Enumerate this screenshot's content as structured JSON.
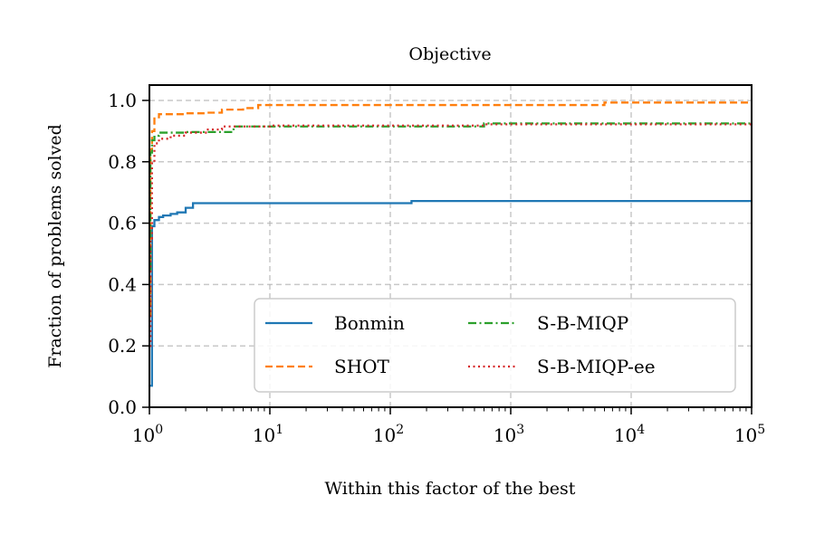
{
  "chart_data": {
    "type": "line",
    "title": "Objective",
    "xlabel": "Within this factor of the best",
    "ylabel": "Fraction of problems solved",
    "xscale": "log",
    "xlim": [
      1,
      100000
    ],
    "ylim": [
      0,
      1.05
    ],
    "xticks": [
      {
        "base": "10",
        "exp": "0",
        "value": 1
      },
      {
        "base": "10",
        "exp": "1",
        "value": 10
      },
      {
        "base": "10",
        "exp": "2",
        "value": 100
      },
      {
        "base": "10",
        "exp": "3",
        "value": 1000
      },
      {
        "base": "10",
        "exp": "4",
        "value": 10000
      },
      {
        "base": "10",
        "exp": "5",
        "value": 100000
      }
    ],
    "yticks": [
      "0.0",
      "0.2",
      "0.4",
      "0.6",
      "0.8",
      "1.0"
    ],
    "ytick_values": [
      0,
      0.2,
      0.4,
      0.6,
      0.8,
      1.0
    ],
    "grid": true,
    "legend_position": "lower-right",
    "legend_columns": 2,
    "series": [
      {
        "name": "Bonmin",
        "color": "#1f77b4",
        "style": "solid",
        "x": [
          1,
          1.05,
          1.1,
          1.2,
          1.3,
          1.5,
          1.7,
          2.0,
          2.3,
          3,
          5,
          10,
          50,
          130,
          150,
          1000,
          10000,
          100000
        ],
        "y": [
          0.07,
          0.59,
          0.61,
          0.62,
          0.625,
          0.63,
          0.635,
          0.65,
          0.665,
          0.665,
          0.665,
          0.665,
          0.665,
          0.665,
          0.672,
          0.672,
          0.672,
          0.672
        ]
      },
      {
        "name": "SHOT",
        "color": "#ff7f0e",
        "style": "dashed",
        "x": [
          1,
          1.02,
          1.05,
          1.1,
          1.2,
          1.5,
          2,
          3,
          4,
          5,
          6,
          8,
          10,
          100,
          1000,
          5000,
          6000,
          100000
        ],
        "y": [
          0.3,
          0.84,
          0.9,
          0.945,
          0.955,
          0.955,
          0.958,
          0.96,
          0.97,
          0.97,
          0.975,
          0.985,
          0.985,
          0.985,
          0.985,
          0.985,
          0.993,
          0.993
        ]
      },
      {
        "name": "S-B-MIQP",
        "color": "#2ca02c",
        "style": "dashdot",
        "x": [
          1,
          1.02,
          1.05,
          1.1,
          1.2,
          1.5,
          2,
          3,
          4.5,
          5,
          10,
          100,
          550,
          600,
          1000,
          100000
        ],
        "y": [
          0.45,
          0.83,
          0.87,
          0.885,
          0.895,
          0.895,
          0.897,
          0.897,
          0.897,
          0.915,
          0.915,
          0.915,
          0.915,
          0.925,
          0.925,
          0.925
        ]
      },
      {
        "name": "S-B-MIQP-ee",
        "color": "#d62728",
        "style": "dotted",
        "x": [
          1,
          1.02,
          1.05,
          1.1,
          1.2,
          1.5,
          2,
          3,
          4,
          10,
          100,
          550,
          600,
          1000,
          100000
        ],
        "y": [
          0.2,
          0.55,
          0.8,
          0.86,
          0.875,
          0.885,
          0.895,
          0.905,
          0.915,
          0.918,
          0.918,
          0.918,
          0.922,
          0.922,
          0.922
        ]
      }
    ]
  }
}
